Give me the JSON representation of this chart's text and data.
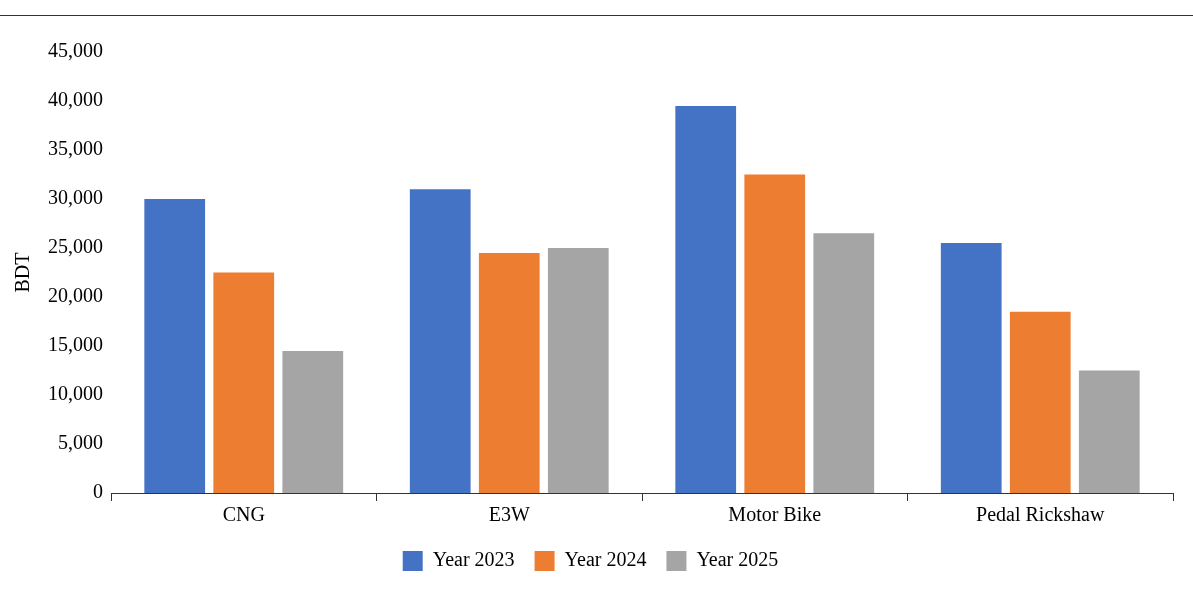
{
  "chart_data": {
    "type": "bar",
    "ylabel": "BDT",
    "categories": [
      "CNG",
      "E3W",
      "Motor Bike",
      "Pedal Rickshaw"
    ],
    "series": [
      {
        "name": "Year 2023",
        "color": "#4472c4",
        "values": [
          30000,
          31000,
          39500,
          25500
        ]
      },
      {
        "name": "Year 2024",
        "color": "#ed7d31",
        "values": [
          22500,
          24500,
          32500,
          18500
        ]
      },
      {
        "name": "Year 2025",
        "color": "#a5a5a5",
        "values": [
          14500,
          25000,
          26500,
          12500
        ]
      }
    ],
    "ylim": [
      0,
      45000
    ],
    "yticks": [
      0,
      {
        "value": 5000,
        "label": "5,000"
      },
      {
        "value": 10000,
        "label": "10,000"
      },
      {
        "value": 15000,
        "label": "15,000"
      },
      {
        "value": 20000,
        "label": "20,000"
      },
      {
        "value": 25000,
        "label": "25,000"
      },
      {
        "value": 30000,
        "label": "30,000"
      },
      {
        "value": 35000,
        "label": "35,000"
      },
      {
        "value": 40000,
        "label": "40,000"
      },
      {
        "value": 45000,
        "label": "45,000"
      }
    ],
    "grid": false,
    "legend": "bottom"
  }
}
